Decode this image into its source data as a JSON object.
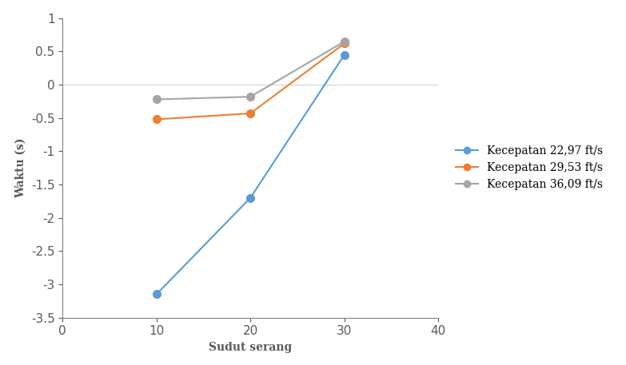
{
  "chart_data": {
    "type": "line",
    "x_label": "Sudut serang",
    "y_label": "Waktu (s)",
    "x": [
      10,
      20,
      30
    ],
    "series": [
      {
        "name": "Kecepatan 22,97 ft/s",
        "color": "#5b9bd5",
        "values": [
          -3.15,
          -1.7,
          0.45
        ],
        "marker": "o"
      },
      {
        "name": "Kecepatan 29,53 ft/s",
        "color": "#ed7d31",
        "values": [
          -0.52,
          -0.43,
          0.62
        ],
        "marker": "o"
      },
      {
        "name": "Kecepatan 36,09 ft/s",
        "color": "#a5a5a5",
        "values": [
          -0.22,
          -0.18,
          0.65
        ],
        "marker": "o"
      }
    ],
    "xlim": [
      0,
      40
    ],
    "xticks": [
      0,
      10,
      20,
      30,
      40
    ],
    "ylim": [
      -3.5,
      1
    ],
    "yticks": [
      -3.5,
      -3,
      -2.5,
      -2,
      -1.5,
      -1,
      -0.5,
      0,
      0.5,
      1
    ],
    "legend": "right",
    "grid": false
  }
}
